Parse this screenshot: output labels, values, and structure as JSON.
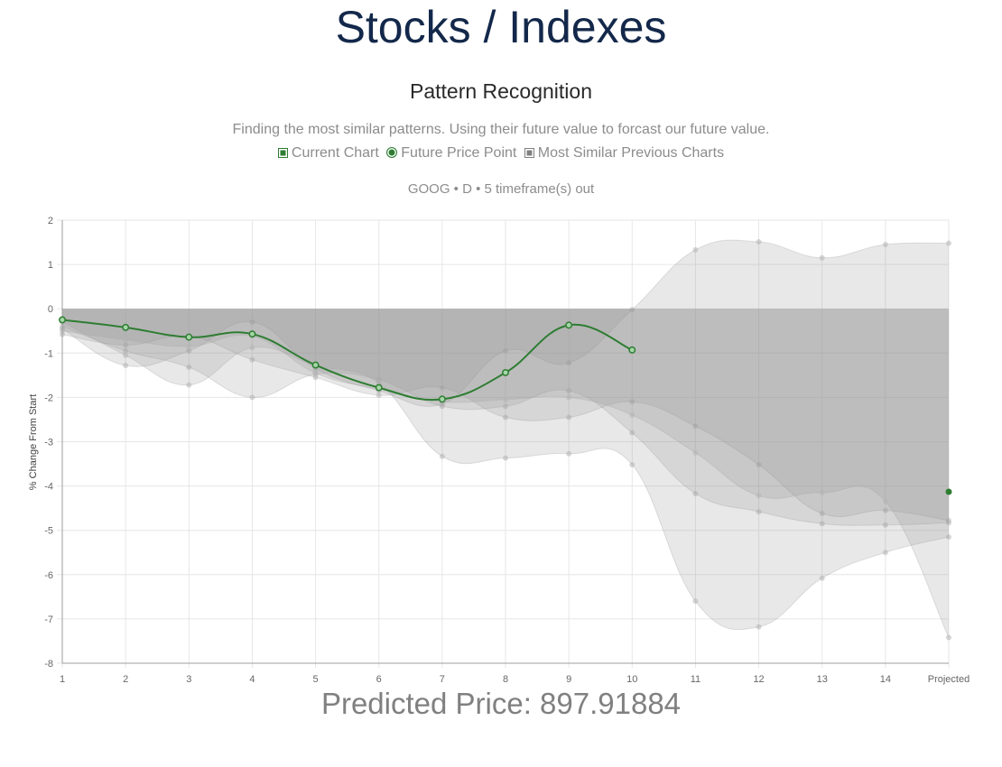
{
  "header": {
    "title": "Stocks / Indexes"
  },
  "section": {
    "title": "Pattern Recognition",
    "description": "Finding the most similar patterns. Using their future value to forcast our future value."
  },
  "legend": {
    "current": "Current Chart",
    "future": "Future Price Point",
    "similar": "Most Similar Previous Charts"
  },
  "chart_subtitle": "GOOG • D • 5 timeframe(s) out",
  "prediction": {
    "label": "Predicted Price:",
    "value": "897.91884"
  },
  "chart_data": {
    "type": "line",
    "categories": [
      "1",
      "2",
      "3",
      "4",
      "5",
      "6",
      "7",
      "8",
      "9",
      "10",
      "11",
      "12",
      "13",
      "14",
      "Projected"
    ],
    "ylabel": "% Change From Start",
    "ylim": [
      -8,
      2
    ],
    "yticks": [
      2,
      1,
      0,
      -1,
      -2,
      -3,
      -4,
      -5,
      -6,
      -7,
      -8
    ],
    "grid": true,
    "colors": {
      "current": "#2e7d32",
      "similar_fill": "rgba(150,150,150,0.22)",
      "similar_point": "rgba(180,180,180,0.55)",
      "grid": "#e6e6e6",
      "axis": "#9e9e9e",
      "tick_text": "#666666"
    },
    "current_series": {
      "values": [
        -0.25,
        -0.42,
        -0.64,
        -0.57,
        -1.27,
        -1.78,
        -2.04,
        -1.44,
        -0.37,
        -0.93
      ]
    },
    "future_point": {
      "category": "Projected",
      "value": -4.13
    },
    "similar_series": [
      {
        "values": [
          -0.45,
          -1.28,
          -0.95,
          -0.3,
          -1.35,
          -1.85,
          -2.15,
          -0.95,
          -1.22,
          -0.02,
          1.33,
          1.51,
          1.15,
          1.45,
          1.48
        ]
      },
      {
        "values": [
          -0.58,
          -0.82,
          -0.62,
          -1.15,
          -1.55,
          -1.95,
          -1.78,
          -2.45,
          -2.45,
          -2.1,
          -2.65,
          -3.52,
          -4.62,
          -4.55,
          -4.78
        ]
      },
      {
        "values": [
          -0.4,
          -0.95,
          -1.32,
          -2.0,
          -1.48,
          -1.6,
          -2.2,
          -2.2,
          -1.85,
          -2.8,
          -4.17,
          -4.58,
          -4.85,
          -4.88,
          -4.83
        ]
      },
      {
        "values": [
          -0.3,
          -1.05,
          -1.72,
          -0.88,
          -1.28,
          -1.68,
          -3.33,
          -3.37,
          -3.27,
          -3.52,
          -6.6,
          -7.18,
          -6.08,
          -5.5,
          -5.15
        ]
      },
      {
        "values": [
          -0.5,
          -0.7,
          -0.85,
          -0.62,
          -1.45,
          -1.82,
          -2.1,
          -2.05,
          -2.0,
          -2.4,
          -3.25,
          -4.22,
          -4.15,
          -4.35,
          -7.42
        ]
      }
    ]
  }
}
